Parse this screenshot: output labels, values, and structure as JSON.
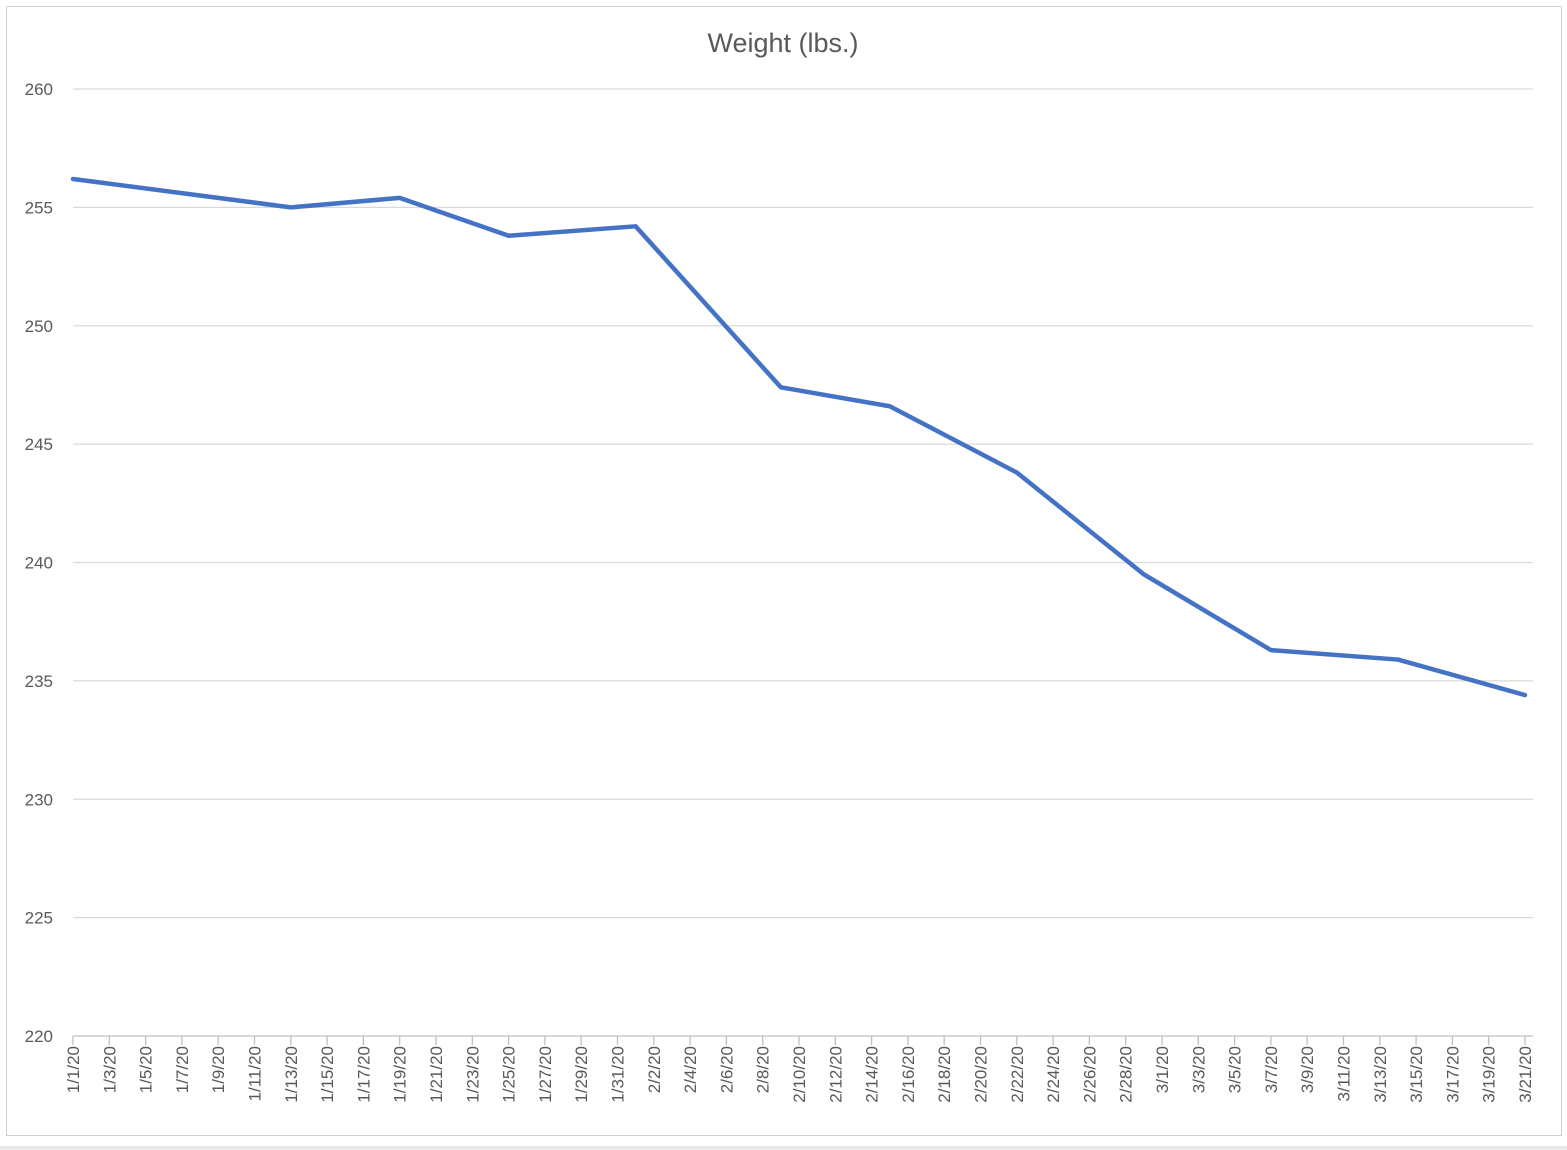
{
  "chart_data": {
    "type": "line",
    "title": "Weight (lbs.)",
    "xlabel": "",
    "ylabel": "",
    "ylim": [
      220,
      260
    ],
    "ytick_step": 5,
    "yticks": [
      "220",
      "225",
      "230",
      "235",
      "240",
      "245",
      "250",
      "255",
      "260"
    ],
    "grid": true,
    "legend": "none",
    "x_start": "1/1/20",
    "x_end": "3/21/20",
    "xtick_labels": [
      "1/1/20",
      "1/3/20",
      "1/5/20",
      "1/7/20",
      "1/9/20",
      "1/11/20",
      "1/13/20",
      "1/15/20",
      "1/17/20",
      "1/19/20",
      "1/21/20",
      "1/23/20",
      "1/25/20",
      "1/27/20",
      "1/29/20",
      "1/31/20",
      "2/2/20",
      "2/4/20",
      "2/6/20",
      "2/8/20",
      "2/10/20",
      "2/12/20",
      "2/14/20",
      "2/16/20",
      "2/18/20",
      "2/20/20",
      "2/22/20",
      "2/24/20",
      "2/26/20",
      "2/28/20",
      "3/1/20",
      "3/3/20",
      "3/5/20",
      "3/7/20",
      "3/9/20",
      "3/11/20",
      "3/13/20",
      "3/15/20",
      "3/17/20",
      "3/19/20",
      "3/21/20"
    ],
    "series": [
      {
        "name": "Weight (lbs.)",
        "color": "#4472C4",
        "x": [
          "1/1/20",
          "1/13/20",
          "1/19/20",
          "1/25/20",
          "2/1/20",
          "2/9/20",
          "2/15/20",
          "2/22/20",
          "2/29/20",
          "3/7/20",
          "3/14/20",
          "3/21/20"
        ],
        "x_day_index": [
          0,
          12,
          18,
          24,
          31,
          39,
          45,
          52,
          59,
          66,
          73,
          80
        ],
        "values": [
          256.2,
          255.0,
          255.4,
          253.8,
          254.2,
          247.4,
          246.6,
          243.8,
          239.5,
          236.3,
          235.9,
          234.4
        ]
      }
    ]
  }
}
